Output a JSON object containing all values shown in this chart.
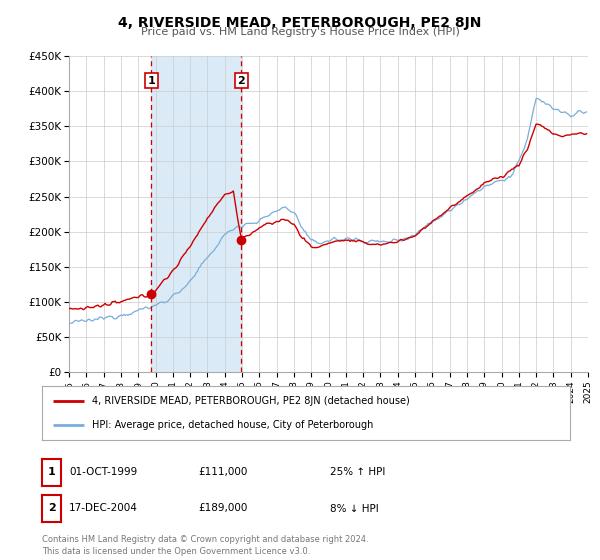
{
  "title": "4, RIVERSIDE MEAD, PETERBOROUGH, PE2 8JN",
  "subtitle": "Price paid vs. HM Land Registry's House Price Index (HPI)",
  "legend_line1": "4, RIVERSIDE MEAD, PETERBOROUGH, PE2 8JN (detached house)",
  "legend_line2": "HPI: Average price, detached house, City of Peterborough",
  "sale1_date": "01-OCT-1999",
  "sale1_price": "£111,000",
  "sale1_hpi": "25% ↑ HPI",
  "sale1_year": 1999.75,
  "sale1_value": 111000,
  "sale2_date": "17-DEC-2004",
  "sale2_price": "£189,000",
  "sale2_hpi": "8% ↓ HPI",
  "sale2_year": 2004.958,
  "sale2_value": 189000,
  "shade_x1": 1999.75,
  "shade_x2": 2004.958,
  "red_line_color": "#cc0000",
  "blue_line_color": "#7aaddb",
  "shade_color": "#dbeaf7",
  "background_color": "#ffffff",
  "grid_color": "#cccccc",
  "footer": "Contains HM Land Registry data © Crown copyright and database right 2024.\nThis data is licensed under the Open Government Licence v3.0.",
  "ylim_min": 0,
  "ylim_max": 450000,
  "xlim_start": 1995,
  "xlim_end": 2025
}
